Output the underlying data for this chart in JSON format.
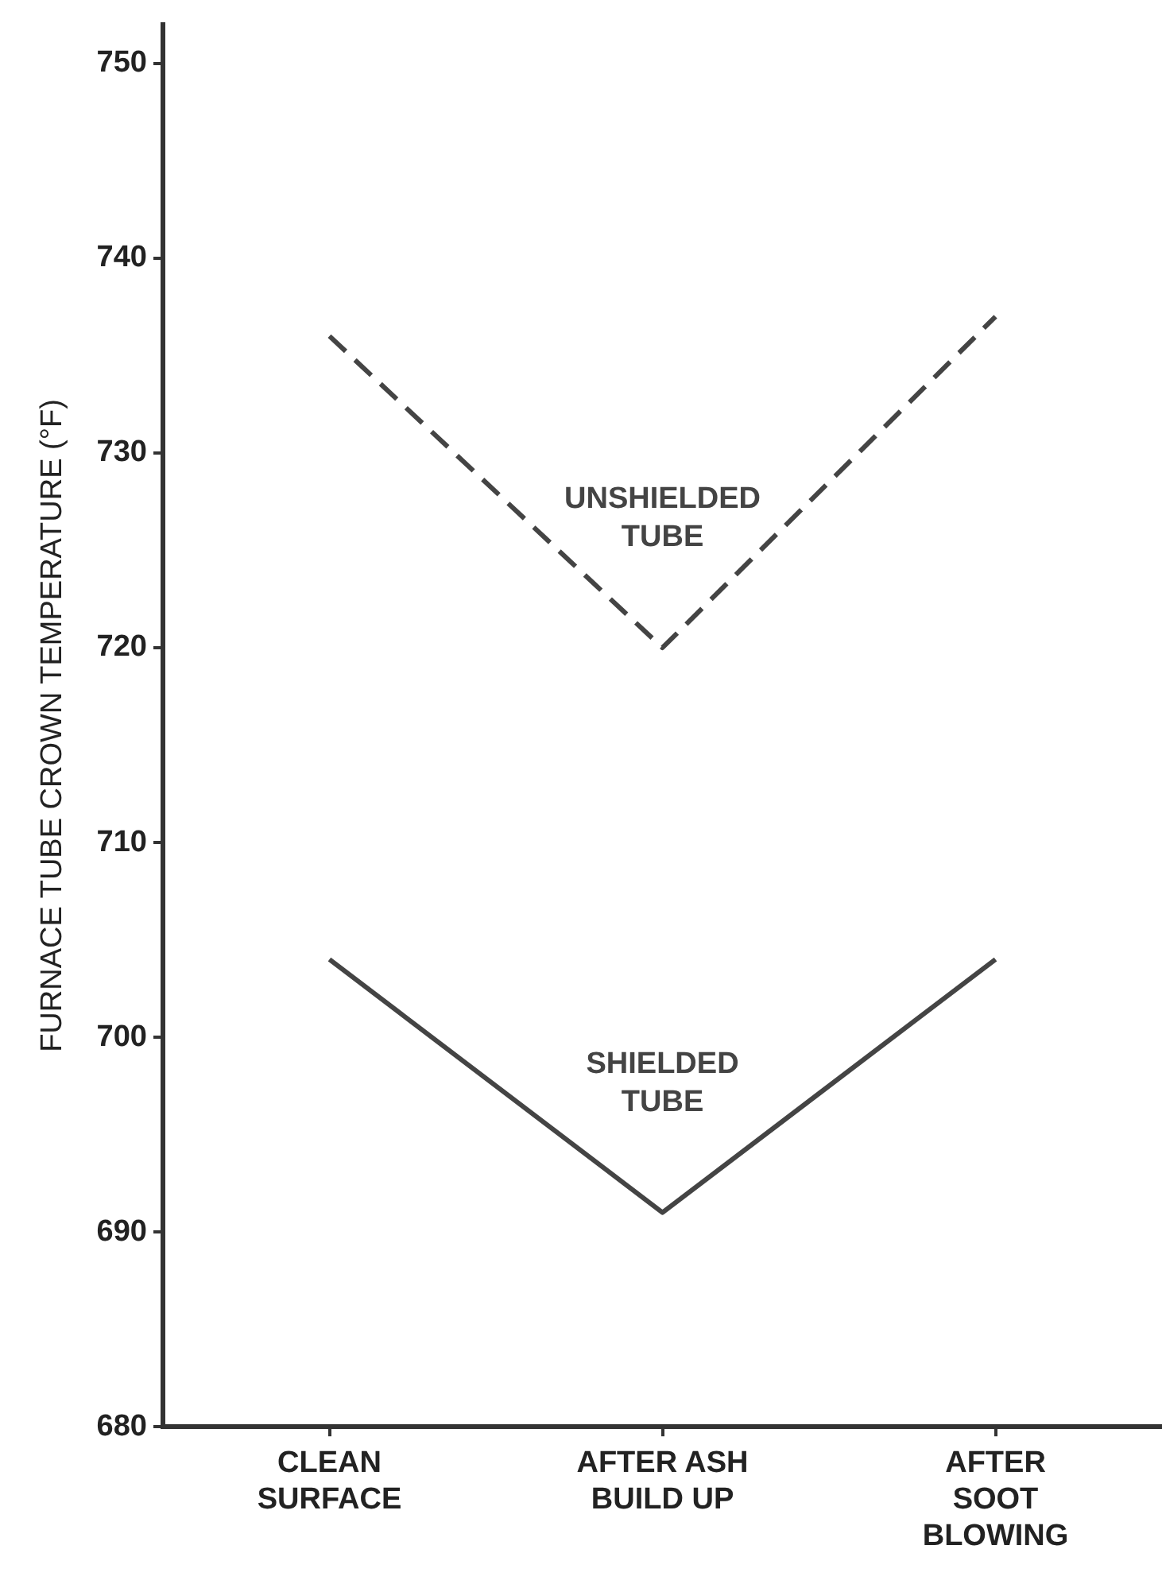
{
  "chart_data": {
    "type": "line",
    "ylabel": "FURNACE TUBE CROWN TEMPERATURE (°F)",
    "categories": [
      "CLEAN\nSURFACE",
      "AFTER ASH\nBUILD UP",
      "AFTER\nSOOT\nBLOWING"
    ],
    "ylim": [
      680,
      752
    ],
    "yticks": [
      680,
      690,
      700,
      710,
      720,
      730,
      740,
      750
    ],
    "series": [
      {
        "name": "UNSHIELDED\nTUBE",
        "color": "#444444",
        "values": [
          736,
          720,
          737
        ],
        "line_style": "dashed"
      },
      {
        "name": "SHIELDED\nTUBE",
        "color": "#444444",
        "values": [
          704,
          691,
          704
        ],
        "line_style": "solid"
      }
    ],
    "marker": "none",
    "legend": false
  }
}
